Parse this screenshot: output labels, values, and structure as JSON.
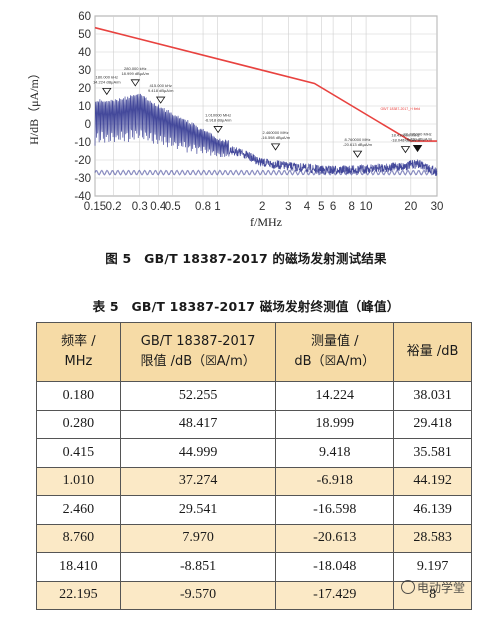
{
  "figure": {
    "caption": "图 5　GB/T 18387-2017 的磁场发射测试结果",
    "chart_data": {
      "type": "line",
      "xlabel": "f/MHz",
      "ylabel": "H/dB（μA/m）",
      "x_scale": "log",
      "xlim": [
        0.15,
        30
      ],
      "ylim": [
        -40,
        60
      ],
      "x_ticks": [
        0.15,
        0.2,
        0.3,
        0.4,
        0.5,
        0.8,
        1,
        2,
        3,
        4,
        5,
        6,
        8,
        10,
        20,
        30
      ],
      "x_tick_labels": [
        "0.15",
        "0.2",
        "0.3",
        "0.4",
        "0.5",
        "0.8",
        "1",
        "2",
        "3",
        "4",
        "5",
        "6",
        "8",
        "10",
        "20",
        "30"
      ],
      "y_ticks": [
        -40,
        -30,
        -20,
        -10,
        0,
        10,
        20,
        30,
        40,
        50,
        60
      ],
      "grid": true,
      "series": [
        {
          "name": "GB/T 18387-2017_H field",
          "color": "#e8423f",
          "x": [
            0.15,
            4.5,
            20,
            30
          ],
          "y": [
            53.5,
            22.5,
            -9.5,
            -9.5
          ]
        },
        {
          "color": "#3a3f96",
          "envelope": {
            "x": [
              0.15,
              0.2,
              0.25,
              0.3,
              0.4,
              0.55,
              0.8,
              1.0,
              1.5,
              2.0,
              3.0,
              5.0,
              8.0,
              12.0,
              18.0,
              22.0,
              30.0
            ],
            "y": [
              13,
              13,
              15,
              17,
              10,
              4,
              -3,
              -8,
              -12,
              -17,
              -19,
              -21,
              -21,
              -20,
              -19,
              -17.5,
              -22
            ]
          }
        }
      ],
      "markers": [
        {
          "x": 0.18,
          "y": 14.224,
          "label": "180.000 kHz\n14.224 dBμA/m"
        },
        {
          "x": 0.28,
          "y": 18.999,
          "label": "280.000 kHz\n18.999 dBμA/m"
        },
        {
          "x": 0.415,
          "y": 9.418,
          "label": "415.000 kHz\n9.418 dBμA/m"
        },
        {
          "x": 1.01,
          "y": -6.918,
          "label": "1.010000 MHz\n-6.918 dBμA/m"
        },
        {
          "x": 2.46,
          "y": -16.598,
          "label": "2.460000 MHz\n-16.598 dBμA/m"
        },
        {
          "x": 8.76,
          "y": -20.613,
          "label": "8.760000 MHz\n-20.613 dBμA/m"
        },
        {
          "x": 18.41,
          "y": -18.048,
          "label": "18.410000 MHz\n-18.048 dBμA/m"
        },
        {
          "x": 22.195,
          "y": -17.429,
          "label": "22.195000 MHz\n-17.429 dBμA/m",
          "filled": true
        }
      ]
    }
  },
  "table": {
    "caption": "表 5　GB/T 18387-2017 磁场发射终测值（峰值）",
    "headers": [
      [
        "频率 /",
        "MHz"
      ],
      [
        "GB/T 18387-2017",
        "限值 /dB（☒A/m）"
      ],
      [
        "测量值 /",
        "dB（☒A/m）"
      ],
      [
        "裕量 /dB"
      ]
    ],
    "rows": [
      [
        "0.180",
        "52.255",
        "14.224",
        "38.031"
      ],
      [
        "0.280",
        "48.417",
        "18.999",
        "29.418"
      ],
      [
        "0.415",
        "44.999",
        "9.418",
        "35.581"
      ],
      [
        "1.010",
        "37.274",
        "-6.918",
        "44.192"
      ],
      [
        "2.460",
        "29.541",
        "-16.598",
        "46.139"
      ],
      [
        "8.760",
        "7.970",
        "-20.613",
        "28.583"
      ],
      [
        "18.410",
        "-8.851",
        "-18.048",
        "9.197"
      ],
      [
        "22.195",
        "-9.570",
        "-17.429",
        "8"
      ]
    ]
  },
  "watermark": {
    "text": "电动学堂"
  }
}
